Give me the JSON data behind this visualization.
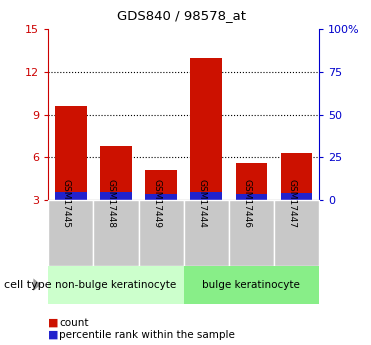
{
  "title": "GDS840 / 98578_at",
  "samples": [
    "GSM17445",
    "GSM17448",
    "GSM17449",
    "GSM17444",
    "GSM17446",
    "GSM17447"
  ],
  "count_values": [
    9.6,
    6.8,
    5.1,
    13.0,
    5.6,
    6.3
  ],
  "percentile_values": [
    4.9,
    4.7,
    3.7,
    5.0,
    3.6,
    4.4
  ],
  "ylim_left": [
    3,
    15
  ],
  "ylim_right": [
    0,
    100
  ],
  "yticks_left": [
    3,
    6,
    9,
    12,
    15
  ],
  "yticks_right": [
    0,
    25,
    50,
    75,
    100
  ],
  "ytick_labels_right": [
    "0",
    "25",
    "50",
    "75",
    "100%"
  ],
  "left_axis_color": "#cc0000",
  "right_axis_color": "#0000cc",
  "bar_width": 0.7,
  "count_color": "#cc1100",
  "percentile_color": "#2222cc",
  "group1_label": "non-bulge keratinocyte",
  "group2_label": "bulge keratinocyte",
  "group1_indices": [
    0,
    1,
    2
  ],
  "group2_indices": [
    3,
    4,
    5
  ],
  "group1_color": "#ccffcc",
  "group2_color": "#88ee88",
  "cell_type_label": "cell type",
  "legend_count_label": "count",
  "legend_percentile_label": "percentile rank within the sample",
  "plot_bg": "#ffffff",
  "grid_color": "#000000",
  "grid_linestyle": ":",
  "gray_label_bg": "#c8c8c8"
}
